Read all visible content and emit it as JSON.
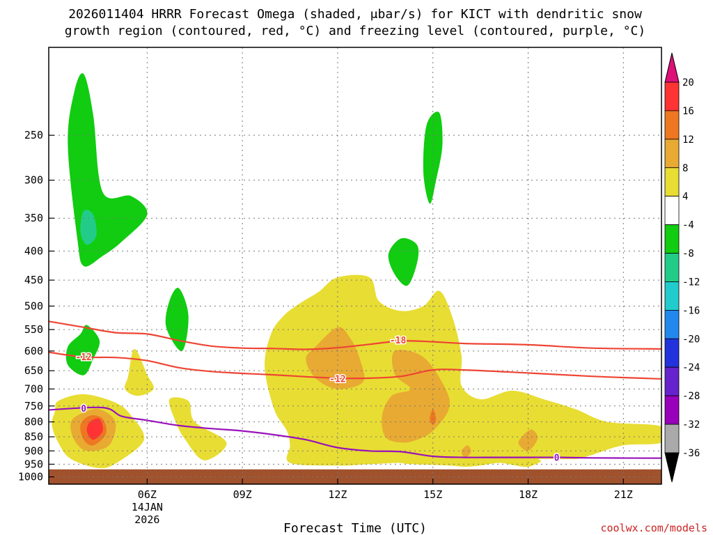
{
  "chart_data": {
    "type": "contour",
    "title_line1": "2026011404 HRRR Forecast Omega (shaded, μbar/s) for KICT with dendritic snow",
    "title_line2": "growth region (contoured, red, °C) and freezing level (contoured, purple, °C)",
    "xlabel": "Forecast Time (UTC)",
    "x_range_hours": [
      2.9,
      22.2
    ],
    "x_ticks": [
      {
        "hour": 6,
        "label": "06Z",
        "sub1": "14JAN",
        "sub2": "2026"
      },
      {
        "hour": 9,
        "label": "09Z"
      },
      {
        "hour": 12,
        "label": "12Z"
      },
      {
        "hour": 15,
        "label": "15Z"
      },
      {
        "hour": 18,
        "label": "18Z"
      },
      {
        "hour": 21,
        "label": "21Z"
      }
    ],
    "y_range_mb": [
      1030,
      175
    ],
    "y_scale": "log-pressure",
    "y_ticks": [
      250,
      300,
      350,
      400,
      450,
      500,
      550,
      600,
      650,
      700,
      750,
      800,
      850,
      900,
      950,
      1000
    ],
    "grid": true,
    "colorbar": {
      "labels": [
        "20",
        "16",
        "12",
        "8",
        "4",
        "-4",
        "-8",
        "-12",
        "-16",
        "-20",
        "-24",
        "-28",
        "-32",
        "-36"
      ],
      "colors": [
        "#ff3333",
        "#ee7722",
        "#e8aa33",
        "#e8dd33",
        "#ffffff",
        "#11cc11",
        "#22cc88",
        "#22cccc",
        "#2288ee",
        "#2233dd",
        "#6622cc",
        "#9900bb",
        "#aaaaaa"
      ],
      "top_arrow_color": "#dd1177",
      "bottom_arrow_color": "#000000"
    },
    "contours": [
      {
        "label": "-18",
        "color": "#ee4433",
        "points": [
          [
            2.9,
            532
          ],
          [
            4,
            545
          ],
          [
            5,
            557
          ],
          [
            6,
            560
          ],
          [
            7,
            575
          ],
          [
            8,
            588
          ],
          [
            9,
            593
          ],
          [
            10,
            594
          ],
          [
            11,
            596
          ],
          [
            12,
            592
          ],
          [
            13,
            584
          ],
          [
            14,
            576
          ],
          [
            15,
            578
          ],
          [
            16,
            582
          ],
          [
            18,
            585
          ],
          [
            20,
            593
          ],
          [
            22.2,
            595
          ]
        ]
      },
      {
        "label": "-12",
        "color": "#ee4433",
        "points": [
          [
            2.9,
            603
          ],
          [
            4,
            615
          ],
          [
            5,
            616
          ],
          [
            6,
            624
          ],
          [
            7,
            642
          ],
          [
            8,
            652
          ],
          [
            9,
            657
          ],
          [
            10,
            661
          ],
          [
            11,
            666
          ],
          [
            12,
            670
          ],
          [
            13,
            670
          ],
          [
            14,
            665
          ],
          [
            15,
            648
          ],
          [
            16,
            648
          ],
          [
            18,
            656
          ],
          [
            20,
            665
          ],
          [
            22.2,
            672
          ]
        ]
      },
      {
        "label": "0",
        "color": "#9911bb",
        "points": [
          [
            2.9,
            762
          ],
          [
            4.6,
            755
          ],
          [
            5.2,
            782
          ],
          [
            6,
            795
          ],
          [
            7,
            812
          ],
          [
            8,
            822
          ],
          [
            9,
            830
          ],
          [
            10,
            843
          ],
          [
            11,
            860
          ],
          [
            12,
            888
          ],
          [
            13,
            900
          ],
          [
            14,
            903
          ],
          [
            15,
            920
          ],
          [
            16,
            924
          ],
          [
            17,
            924
          ],
          [
            18,
            924
          ],
          [
            19,
            924
          ],
          [
            20,
            926
          ],
          [
            22.2,
            927
          ]
        ]
      }
    ],
    "contour_labels": [
      {
        "text": "-18",
        "hour": 13.9,
        "mb": 574
      },
      {
        "text": "-12",
        "hour": 4.0,
        "mb": 614
      },
      {
        "text": "-12",
        "hour": 12.0,
        "mb": 671
      },
      {
        "text": "0",
        "hour": 4.0,
        "mb": 757
      },
      {
        "text": "0",
        "hour": 18.9,
        "mb": 924
      }
    ],
    "omega_regions": [
      {
        "sign": "negative",
        "level": "-4",
        "color": "#11cc11",
        "points": [
          [
            4,
            425
          ],
          [
            3.8,
            380
          ],
          [
            3.5,
            260
          ],
          [
            3.7,
            210
          ],
          [
            4,
            195
          ],
          [
            4.3,
            230
          ],
          [
            4.6,
            315
          ],
          [
            5.5,
            320
          ],
          [
            6,
            345
          ],
          [
            5.2,
            385
          ],
          [
            4.6,
            408
          ]
        ]
      },
      {
        "sign": "negative",
        "level": "-8",
        "color": "#22cc88",
        "points": [
          [
            3.9,
            370
          ],
          [
            4.0,
            340
          ],
          [
            4.3,
            345
          ],
          [
            4.4,
            375
          ],
          [
            4.1,
            390
          ]
        ]
      },
      {
        "sign": "negative",
        "level": "-4",
        "color": "#11cc11",
        "points": [
          [
            14.0,
            380
          ],
          [
            14.5,
            390
          ],
          [
            14.5,
            420
          ],
          [
            14.2,
            460
          ],
          [
            13.8,
            440
          ],
          [
            13.6,
            405
          ]
        ]
      },
      {
        "sign": "negative",
        "level": "-4",
        "color": "#11cc11",
        "points": [
          [
            14.8,
            240
          ],
          [
            15.2,
            228
          ],
          [
            15.3,
            260
          ],
          [
            15.1,
            300
          ],
          [
            14.9,
            330
          ],
          [
            14.7,
            290
          ]
        ]
      },
      {
        "sign": "negative",
        "level": "-4",
        "color": "#11cc11",
        "points": [
          [
            7.0,
            465
          ],
          [
            7.3,
            520
          ],
          [
            7.1,
            600
          ],
          [
            6.6,
            545
          ],
          [
            6.7,
            490
          ]
        ]
      },
      {
        "sign": "negative",
        "level": "-4",
        "color": "#11cc11",
        "points": [
          [
            3.9,
            560
          ],
          [
            4.1,
            540
          ],
          [
            4.5,
            575
          ],
          [
            4.3,
            620
          ],
          [
            4.0,
            662
          ],
          [
            3.5,
            635
          ],
          [
            3.5,
            590
          ]
        ]
      },
      {
        "sign": "positive",
        "level": "4",
        "color": "#e8dd33",
        "points": [
          [
            3.1,
            765
          ],
          [
            3.2,
            735
          ],
          [
            4,
            715
          ],
          [
            5,
            740
          ],
          [
            5.5,
            780
          ],
          [
            5.9,
            860
          ],
          [
            5.1,
            940
          ],
          [
            4.5,
            965
          ],
          [
            3.6,
            930
          ],
          [
            3.2,
            870
          ],
          [
            3.0,
            810
          ]
        ]
      },
      {
        "sign": "positive",
        "level": "8",
        "color": "#e8aa33",
        "points": [
          [
            3.6,
            800
          ],
          [
            4.0,
            770
          ],
          [
            4.5,
            760
          ],
          [
            5.0,
            800
          ],
          [
            4.8,
            880
          ],
          [
            4.1,
            900
          ],
          [
            3.7,
            860
          ]
        ]
      },
      {
        "sign": "positive",
        "level": "12",
        "color": "#ee7722",
        "points": [
          [
            3.9,
            810
          ],
          [
            4.2,
            780
          ],
          [
            4.6,
            790
          ],
          [
            4.7,
            840
          ],
          [
            4.3,
            880
          ],
          [
            4.0,
            860
          ]
        ]
      },
      {
        "sign": "positive",
        "level": "16",
        "color": "#ff3333",
        "points": [
          [
            4.2,
            800
          ],
          [
            4.5,
            790
          ],
          [
            4.6,
            830
          ],
          [
            4.3,
            860
          ],
          [
            4.1,
            830
          ]
        ]
      },
      {
        "sign": "positive",
        "level": "4",
        "color": "#e8dd33",
        "points": [
          [
            6.7,
            730
          ],
          [
            7.3,
            735
          ],
          [
            7.5,
            800
          ],
          [
            8.5,
            870
          ],
          [
            7.8,
            935
          ],
          [
            7.2,
            860
          ],
          [
            6.9,
            800
          ]
        ]
      },
      {
        "sign": "positive",
        "level": "4",
        "color": "#e8dd33",
        "points": [
          [
            5.4,
            665
          ],
          [
            5.6,
            595
          ],
          [
            6.0,
            660
          ],
          [
            6.2,
            700
          ],
          [
            5.7,
            720
          ],
          [
            5.3,
            700
          ]
        ]
      },
      {
        "sign": "positive",
        "level": "4",
        "color": "#e8dd33",
        "points": [
          [
            11.4,
            472
          ],
          [
            12,
            445
          ],
          [
            13.0,
            445
          ],
          [
            13.3,
            490
          ],
          [
            14.0,
            510
          ],
          [
            14.7,
            500
          ],
          [
            15.2,
            470
          ],
          [
            15.6,
            520
          ],
          [
            15.9,
            610
          ],
          [
            15.9,
            690
          ],
          [
            16.5,
            730
          ],
          [
            17.5,
            705
          ],
          [
            18.5,
            730
          ],
          [
            19.5,
            760
          ],
          [
            20.5,
            800
          ],
          [
            22.2,
            815
          ],
          [
            22.2,
            870
          ],
          [
            21,
            880
          ],
          [
            20,
            915
          ],
          [
            19.5,
            930
          ],
          [
            18.4,
            930
          ],
          [
            18.4,
            940
          ],
          [
            18.0,
            960
          ],
          [
            17.6,
            955
          ],
          [
            17.1,
            945
          ],
          [
            16.5,
            955
          ],
          [
            16.0,
            960
          ],
          [
            15.5,
            955
          ],
          [
            14.3,
            950
          ],
          [
            13.9,
            945
          ],
          [
            13.0,
            950
          ],
          [
            12,
            955
          ],
          [
            10.5,
            945
          ],
          [
            10.5,
            880
          ],
          [
            10.4,
            830
          ],
          [
            10.0,
            760
          ],
          [
            9.7,
            640
          ],
          [
            9.9,
            560
          ],
          [
            10.3,
            520
          ],
          [
            10.8,
            495
          ]
        ]
      },
      {
        "sign": "positive",
        "level": "8",
        "color": "#e8aa33",
        "points": [
          [
            11.3,
            590
          ],
          [
            12,
            545
          ],
          [
            12.4,
            570
          ],
          [
            12.7,
            620
          ],
          [
            12.8,
            680
          ],
          [
            12.0,
            700
          ],
          [
            11.3,
            670
          ],
          [
            11.0,
            620
          ]
        ]
      },
      {
        "sign": "positive",
        "level": "8",
        "color": "#e8aa33",
        "points": [
          [
            13.8,
            600
          ],
          [
            14.7,
            615
          ],
          [
            15.4,
            700
          ],
          [
            15.5,
            760
          ],
          [
            15.0,
            830
          ],
          [
            14.5,
            860
          ],
          [
            14.0,
            870
          ],
          [
            13.5,
            850
          ],
          [
            13.4,
            780
          ],
          [
            13.7,
            720
          ],
          [
            14.3,
            700
          ],
          [
            13.8,
            660
          ]
        ]
      },
      {
        "sign": "positive",
        "level": "12",
        "color": "#ee7722",
        "points": [
          [
            15.0,
            760
          ],
          [
            15.1,
            790
          ],
          [
            15.0,
            810
          ],
          [
            14.9,
            790
          ]
        ]
      },
      {
        "sign": "positive",
        "level": "8",
        "color": "#e8aa33",
        "points": [
          [
            17.8,
            850
          ],
          [
            18.1,
            825
          ],
          [
            18.3,
            855
          ],
          [
            18.0,
            900
          ],
          [
            17.7,
            875
          ]
        ]
      },
      {
        "sign": "positive",
        "level": "8",
        "color": "#e8aa33",
        "points": [
          [
            15.9,
            900
          ],
          [
            16.1,
            880
          ],
          [
            16.2,
            905
          ],
          [
            16.0,
            925
          ]
        ]
      }
    ],
    "terrain": {
      "color": "#a0522d",
      "surface_mb": 970
    }
  },
  "credit": "coolwx.com/models"
}
